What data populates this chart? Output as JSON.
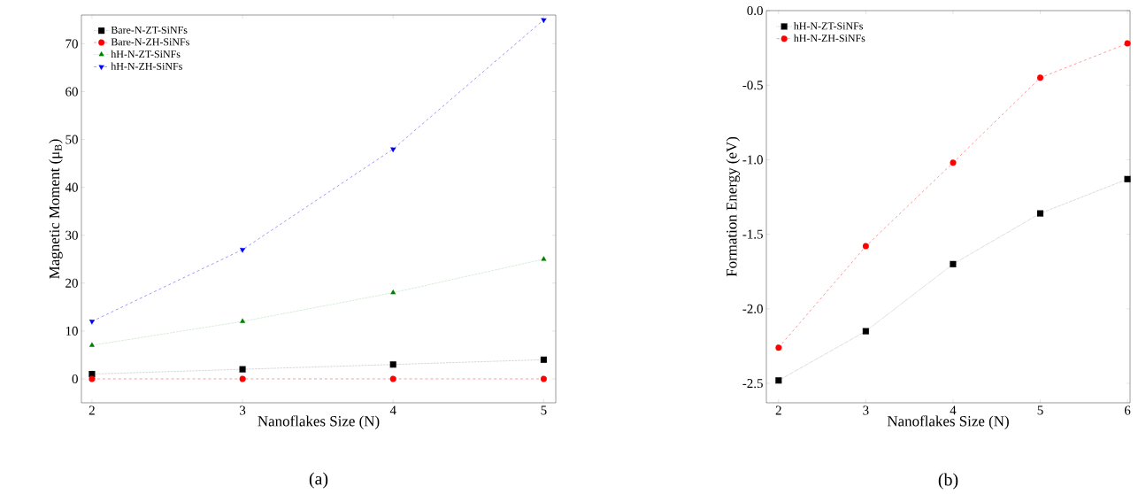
{
  "chart_data": [
    {
      "type": "line",
      "xlabel": "Nanoflakes Size (N)",
      "ylabel": "Magnetic Moment (μ$_{B}$)",
      "x": [
        2,
        3,
        4,
        5
      ],
      "xlim": [
        1.93,
        5.08
      ],
      "ylim": [
        -5,
        76
      ],
      "xticks": [
        2,
        3,
        4,
        5
      ],
      "yticks": [
        0,
        10,
        20,
        30,
        40,
        50,
        60,
        70
      ],
      "legend": "top left",
      "annotations": [
        "(a)"
      ],
      "series": [
        {
          "name": "Bare-N-ZT-SiNFs",
          "color": "#000000",
          "marker": "square",
          "line_style": "dotted",
          "values": [
            1,
            2,
            3,
            4
          ]
        },
        {
          "name": "Bare-N-ZH-SiNFs",
          "color": "#ff0000",
          "marker": "circle",
          "line_style": "dashed",
          "values": [
            0,
            0,
            0,
            0
          ]
        },
        {
          "name": "hH-N-ZT-SiNFs",
          "color": "#008000",
          "marker": "triangle",
          "line_style": "dotted",
          "values": [
            7,
            12,
            18,
            25
          ]
        },
        {
          "name": "hH-N-ZH-SiNFs",
          "color": "#0000ff",
          "marker": "triangle-down",
          "line_style": "dashed",
          "values": [
            12,
            27,
            48,
            75
          ]
        }
      ]
    },
    {
      "type": "line",
      "xlabel": "Nanoflakes Size (N)",
      "ylabel": "Formation Energy (eV)",
      "x": [
        2,
        3,
        4,
        5,
        6
      ],
      "xlim": [
        1.86,
        6.03
      ],
      "ylim": [
        -2.63,
        0
      ],
      "xticks": [
        2,
        3,
        4,
        5,
        6
      ],
      "yticks": [
        {
          "value": -2.5,
          "label": "-2.5"
        },
        {
          "value": -2.0,
          "label": "-2.0"
        },
        {
          "value": -1.5,
          "label": "-1.5"
        },
        {
          "value": -1.0,
          "label": "-1.0"
        },
        {
          "value": -0.5,
          "label": "-0.5"
        },
        {
          "value": 0,
          "label": "0.0"
        }
      ],
      "legend": "top left",
      "annotations": [
        "(b)"
      ],
      "series": [
        {
          "name": "hH-N-ZT-SiNFs",
          "color": "#000000",
          "marker": "square",
          "line_style": "dotted",
          "values": [
            -2.48,
            -2.15,
            -1.7,
            -1.36,
            -1.13
          ]
        },
        {
          "name": "hH-N-ZH-SiNFs",
          "color": "#ff0000",
          "marker": "circle",
          "line_style": "dashed",
          "values": [
            -2.26,
            -1.58,
            -1.02,
            -0.45,
            -0.22
          ]
        }
      ]
    }
  ]
}
